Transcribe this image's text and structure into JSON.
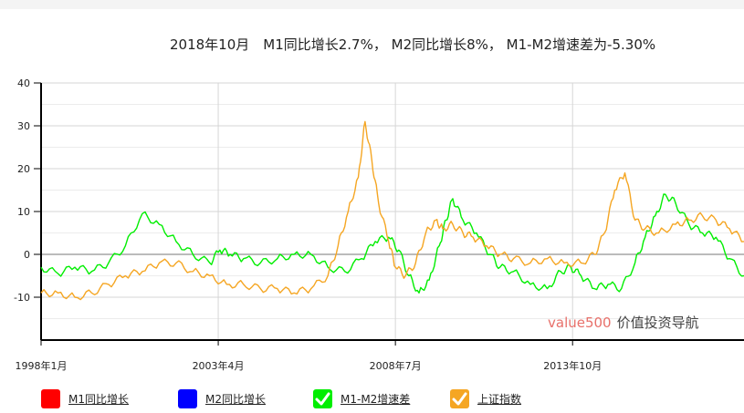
{
  "title": "2018年10月　M1同比增长2.7%， M2同比增长8%， M1-M2增速差为-5.30%",
  "watermark": {
    "brand": "value500",
    "text": "价值投资导航",
    "brand_color": "#e8706a",
    "text_color": "#444444"
  },
  "legend": [
    {
      "name": "M1同比增长",
      "color": "#ff0000",
      "checked": false
    },
    {
      "name": "M2同比增长",
      "color": "#0000ff",
      "checked": false
    },
    {
      "name": "M1-M2增速差",
      "color": "#00ee00",
      "checked": true
    },
    {
      "name": "上证指数",
      "color": "#f5a623",
      "checked": true
    }
  ],
  "chart_data": {
    "type": "line",
    "y_ticks": [
      "40",
      "30",
      "20",
      "10",
      "0",
      "-10"
    ],
    "ylim": [
      -20,
      40
    ],
    "x_ticks": [
      {
        "label": "1998年1月",
        "x": 1998.0
      },
      {
        "label": "2003年4月",
        "x": 2003.25
      },
      {
        "label": "2008年7月",
        "x": 2008.5
      },
      {
        "label": "2013年10月",
        "x": 2013.75
      }
    ],
    "xlim": [
      1998.0,
      2018.83
    ],
    "grid": true,
    "legend_position": "bottom",
    "series": [
      {
        "name": "M1-M2增速差",
        "color": "#00ee00",
        "points": [
          [
            1998.0,
            -3
          ],
          [
            1998.5,
            -4.5
          ],
          [
            1999.0,
            -3
          ],
          [
            1999.5,
            -4
          ],
          [
            2000.0,
            -2
          ],
          [
            2000.5,
            2
          ],
          [
            2001.0,
            9.5
          ],
          [
            2001.5,
            7
          ],
          [
            2002.0,
            3
          ],
          [
            2002.5,
            0
          ],
          [
            2003.0,
            -2
          ],
          [
            2003.3,
            1
          ],
          [
            2003.6,
            0
          ],
          [
            2004.0,
            -1
          ],
          [
            2004.5,
            -2
          ],
          [
            2005.0,
            -1
          ],
          [
            2005.5,
            0
          ],
          [
            2006.0,
            0
          ],
          [
            2006.5,
            -3
          ],
          [
            2007.0,
            -4
          ],
          [
            2007.5,
            -1
          ],
          [
            2007.9,
            3
          ],
          [
            2008.3,
            4
          ],
          [
            2008.6,
            1
          ],
          [
            2008.9,
            -5
          ],
          [
            2009.2,
            -9
          ],
          [
            2009.5,
            -6
          ],
          [
            2009.8,
            2
          ],
          [
            2010.0,
            8
          ],
          [
            2010.2,
            13
          ],
          [
            2010.5,
            8
          ],
          [
            2010.9,
            5
          ],
          [
            2011.3,
            0
          ],
          [
            2011.6,
            -3
          ],
          [
            2012.0,
            -4
          ],
          [
            2012.5,
            -7
          ],
          [
            2013.0,
            -8
          ],
          [
            2013.4,
            -4
          ],
          [
            2013.7,
            -3
          ],
          [
            2014.0,
            -5
          ],
          [
            2014.4,
            -8
          ],
          [
            2014.8,
            -7
          ],
          [
            2015.2,
            -8
          ],
          [
            2015.6,
            -2
          ],
          [
            2015.9,
            4
          ],
          [
            2016.2,
            9
          ],
          [
            2016.5,
            14
          ],
          [
            2016.8,
            12
          ],
          [
            2017.2,
            7
          ],
          [
            2017.6,
            5
          ],
          [
            2018.0,
            4
          ],
          [
            2018.4,
            -1
          ],
          [
            2018.83,
            -5
          ]
        ]
      },
      {
        "name": "上证指数",
        "color": "#f5a623",
        "points": [
          [
            1998.0,
            -9
          ],
          [
            1998.5,
            -9
          ],
          [
            1999.0,
            -10
          ],
          [
            1999.5,
            -9
          ],
          [
            2000.0,
            -7
          ],
          [
            2000.5,
            -5
          ],
          [
            2001.0,
            -4
          ],
          [
            2001.5,
            -2
          ],
          [
            2002.0,
            -2
          ],
          [
            2002.5,
            -4
          ],
          [
            2003.0,
            -5
          ],
          [
            2003.5,
            -7
          ],
          [
            2004.0,
            -7
          ],
          [
            2004.5,
            -8
          ],
          [
            2005.0,
            -8
          ],
          [
            2005.5,
            -9
          ],
          [
            2006.0,
            -8
          ],
          [
            2006.5,
            -5
          ],
          [
            2006.8,
            2
          ],
          [
            2007.1,
            10
          ],
          [
            2007.4,
            18
          ],
          [
            2007.6,
            31
          ],
          [
            2007.8,
            22
          ],
          [
            2008.0,
            12
          ],
          [
            2008.3,
            3
          ],
          [
            2008.5,
            -3
          ],
          [
            2008.8,
            -5
          ],
          [
            2009.1,
            -2
          ],
          [
            2009.4,
            5
          ],
          [
            2009.7,
            8
          ],
          [
            2009.9,
            6
          ],
          [
            2010.2,
            7
          ],
          [
            2010.5,
            5
          ],
          [
            2010.8,
            4
          ],
          [
            2011.2,
            2
          ],
          [
            2011.6,
            0
          ],
          [
            2012.0,
            -1
          ],
          [
            2012.5,
            -2
          ],
          [
            2013.0,
            -1
          ],
          [
            2013.5,
            -2
          ],
          [
            2014.0,
            -2
          ],
          [
            2014.4,
            0
          ],
          [
            2014.7,
            5
          ],
          [
            2015.0,
            15
          ],
          [
            2015.3,
            19
          ],
          [
            2015.6,
            8
          ],
          [
            2015.9,
            6
          ],
          [
            2016.3,
            5
          ],
          [
            2016.8,
            7
          ],
          [
            2017.2,
            8
          ],
          [
            2017.6,
            9
          ],
          [
            2018.0,
            8
          ],
          [
            2018.4,
            6
          ],
          [
            2018.83,
            3
          ]
        ]
      }
    ]
  }
}
